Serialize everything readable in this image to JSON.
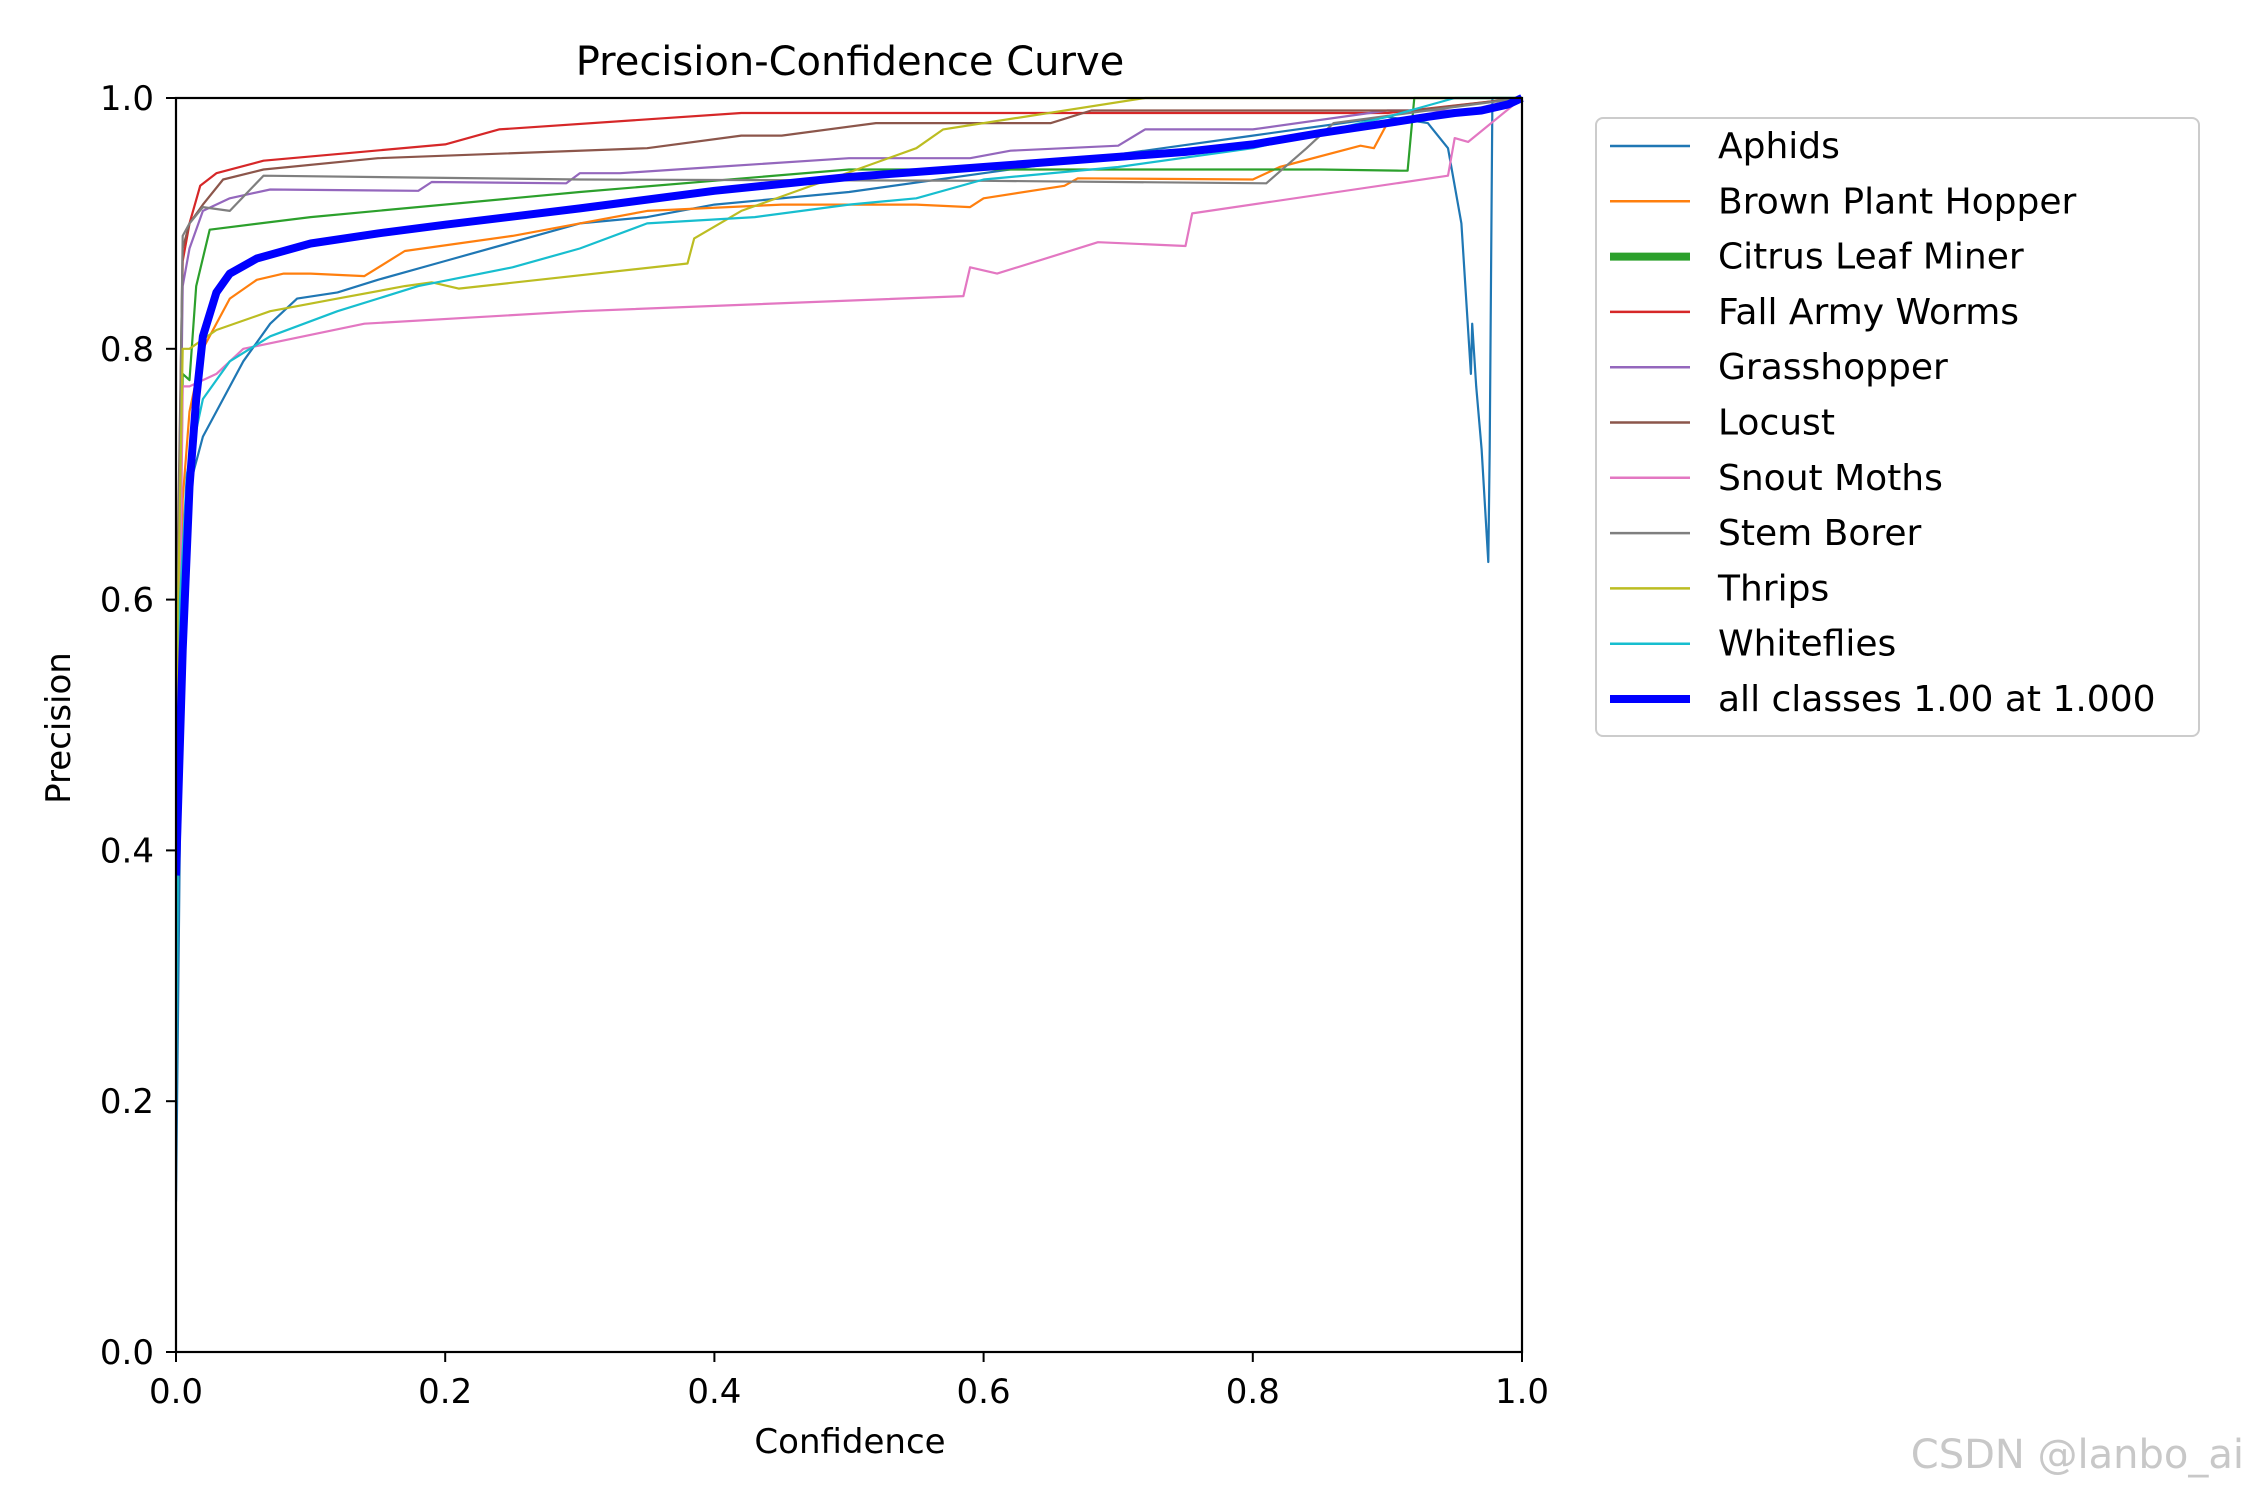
{
  "chart_data": {
    "type": "line",
    "title": "Precision-Confidence Curve",
    "xlabel": "Confidence",
    "ylabel": "Precision",
    "xlim": [
      0,
      1
    ],
    "ylim": [
      0,
      1
    ],
    "xticks": [
      "0.0",
      "0.2",
      "0.4",
      "0.6",
      "0.8",
      "1.0"
    ],
    "yticks": [
      "0.0",
      "0.2",
      "0.4",
      "0.6",
      "0.8",
      "1.0"
    ],
    "legend_position": "outside-right-top",
    "series": [
      {
        "name": "Aphids",
        "color": "#1f77b4",
        "x": [
          0.0,
          0.005,
          0.01,
          0.02,
          0.03,
          0.05,
          0.07,
          0.09,
          0.12,
          0.15,
          0.2,
          0.25,
          0.3,
          0.35,
          0.4,
          0.5,
          0.6,
          0.7,
          0.8,
          0.9,
          0.93,
          0.945,
          0.955,
          0.962,
          0.963,
          0.966,
          0.97,
          0.975,
          0.976,
          0.978,
          1.0
        ],
        "y": [
          0.12,
          0.62,
          0.69,
          0.73,
          0.75,
          0.79,
          0.82,
          0.84,
          0.845,
          0.855,
          0.87,
          0.885,
          0.9,
          0.905,
          0.915,
          0.925,
          0.94,
          0.955,
          0.97,
          0.985,
          0.98,
          0.96,
          0.9,
          0.78,
          0.82,
          0.77,
          0.72,
          0.63,
          0.72,
          1.0,
          1.0
        ]
      },
      {
        "name": "Brown Plant Hopper",
        "color": "#ff7f0e",
        "x": [
          0.0,
          0.005,
          0.01,
          0.02,
          0.04,
          0.06,
          0.08,
          0.1,
          0.14,
          0.17,
          0.25,
          0.35,
          0.45,
          0.55,
          0.59,
          0.6,
          0.66,
          0.67,
          0.8,
          0.82,
          0.88,
          0.89,
          0.9,
          0.97,
          1.0
        ],
        "y": [
          0.35,
          0.68,
          0.75,
          0.8,
          0.84,
          0.855,
          0.86,
          0.86,
          0.858,
          0.878,
          0.89,
          0.91,
          0.915,
          0.915,
          0.913,
          0.92,
          0.93,
          0.936,
          0.935,
          0.945,
          0.962,
          0.96,
          0.98,
          0.99,
          1.0
        ]
      },
      {
        "name": "Citrus Leaf Miner",
        "color": "#2ca02c",
        "x": [
          0.0,
          0.005,
          0.01,
          0.015,
          0.025,
          0.1,
          0.3,
          0.5,
          0.7,
          0.85,
          0.91,
          0.915,
          0.92,
          0.95,
          1.0
        ],
        "y": [
          0.38,
          0.78,
          0.775,
          0.85,
          0.895,
          0.905,
          0.925,
          0.943,
          0.943,
          0.943,
          0.942,
          0.942,
          1.0,
          1.0,
          1.0
        ],
        "stroke": 2.2
      },
      {
        "name": "Fall Army Worms",
        "color": "#d62728",
        "x": [
          0.0,
          0.005,
          0.01,
          0.018,
          0.03,
          0.065,
          0.2,
          0.24,
          0.42,
          0.6,
          0.9,
          1.0
        ],
        "y": [
          0.5,
          0.87,
          0.9,
          0.93,
          0.94,
          0.95,
          0.963,
          0.975,
          0.988,
          0.988,
          0.988,
          1.0
        ]
      },
      {
        "name": "Grasshopper",
        "color": "#9467bd",
        "x": [
          0.0,
          0.005,
          0.01,
          0.02,
          0.04,
          0.07,
          0.18,
          0.19,
          0.29,
          0.3,
          0.33,
          0.4,
          0.5,
          0.59,
          0.62,
          0.7,
          0.72,
          0.8,
          0.9,
          0.96,
          1.0
        ],
        "y": [
          0.45,
          0.85,
          0.88,
          0.91,
          0.92,
          0.927,
          0.926,
          0.933,
          0.932,
          0.94,
          0.94,
          0.945,
          0.952,
          0.952,
          0.958,
          0.962,
          0.975,
          0.975,
          0.99,
          0.99,
          1.0
        ]
      },
      {
        "name": "Locust",
        "color": "#8c564b",
        "x": [
          0.0,
          0.005,
          0.01,
          0.02,
          0.035,
          0.065,
          0.15,
          0.35,
          0.42,
          0.45,
          0.52,
          0.65,
          0.68,
          0.88,
          0.92,
          1.0
        ],
        "y": [
          0.55,
          0.88,
          0.9,
          0.915,
          0.935,
          0.943,
          0.952,
          0.96,
          0.97,
          0.97,
          0.98,
          0.98,
          0.99,
          0.99,
          0.99,
          1.0
        ]
      },
      {
        "name": "Snout Moths",
        "color": "#e377c2",
        "x": [
          0.0,
          0.005,
          0.01,
          0.03,
          0.05,
          0.14,
          0.3,
          0.585,
          0.59,
          0.61,
          0.685,
          0.75,
          0.755,
          0.945,
          0.95,
          0.96,
          1.0
        ],
        "y": [
          0.3,
          0.77,
          0.77,
          0.78,
          0.8,
          0.82,
          0.83,
          0.842,
          0.865,
          0.86,
          0.885,
          0.882,
          0.908,
          0.938,
          0.968,
          0.965,
          1.0
        ]
      },
      {
        "name": "Stem Borer",
        "color": "#7f7f7f",
        "x": [
          0.0,
          0.005,
          0.01,
          0.02,
          0.04,
          0.065,
          0.3,
          0.6,
          0.81,
          0.84,
          0.86,
          1.0
        ],
        "y": [
          0.5,
          0.89,
          0.9,
          0.913,
          0.91,
          0.938,
          0.935,
          0.934,
          0.932,
          0.96,
          0.98,
          1.0
        ]
      },
      {
        "name": "Thrips",
        "color": "#bcbd22",
        "x": [
          0.0,
          0.005,
          0.01,
          0.03,
          0.07,
          0.12,
          0.17,
          0.19,
          0.21,
          0.38,
          0.385,
          0.42,
          0.55,
          0.57,
          0.72,
          0.73,
          1.0
        ],
        "y": [
          0.5,
          0.8,
          0.8,
          0.815,
          0.83,
          0.84,
          0.85,
          0.853,
          0.848,
          0.868,
          0.888,
          0.91,
          0.96,
          0.975,
          1.0,
          1.0,
          1.0
        ]
      },
      {
        "name": "Whiteflies",
        "color": "#17becf",
        "x": [
          0.0,
          0.003,
          0.008,
          0.02,
          0.04,
          0.07,
          0.12,
          0.18,
          0.25,
          0.3,
          0.35,
          0.43,
          0.5,
          0.55,
          0.6,
          0.7,
          0.8,
          0.9,
          0.95,
          0.96,
          1.0
        ],
        "y": [
          0.2,
          0.6,
          0.7,
          0.76,
          0.79,
          0.81,
          0.83,
          0.85,
          0.865,
          0.88,
          0.9,
          0.905,
          0.915,
          0.92,
          0.935,
          0.945,
          0.96,
          0.985,
          1.0,
          1.0,
          1.0
        ]
      },
      {
        "name": "all classes 1.00 at 1.000",
        "color": "#0000ff",
        "x": [
          0.0,
          0.005,
          0.01,
          0.015,
          0.02,
          0.03,
          0.04,
          0.06,
          0.1,
          0.15,
          0.2,
          0.3,
          0.4,
          0.5,
          0.6,
          0.7,
          0.75,
          0.8,
          0.85,
          0.9,
          0.93,
          0.95,
          0.97,
          0.99,
          1.0
        ],
        "y": [
          0.38,
          0.56,
          0.69,
          0.76,
          0.81,
          0.845,
          0.86,
          0.872,
          0.884,
          0.892,
          0.899,
          0.912,
          0.926,
          0.937,
          0.945,
          0.953,
          0.957,
          0.963,
          0.972,
          0.98,
          0.985,
          0.988,
          0.99,
          0.995,
          1.0
        ],
        "stroke": 8
      }
    ]
  },
  "watermark": "CSDN @lanbo_ai"
}
